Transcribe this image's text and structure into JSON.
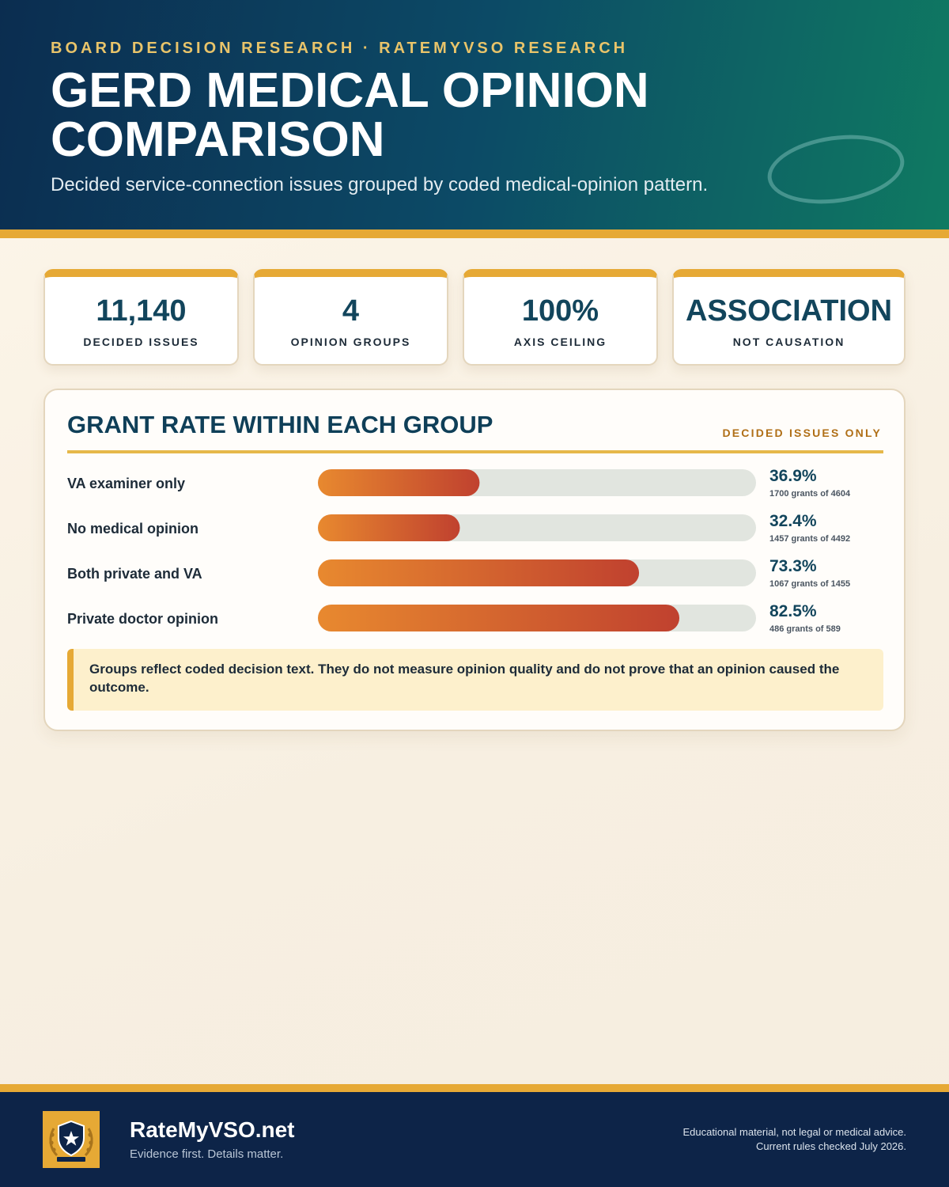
{
  "header": {
    "eyebrow": "BOARD DECISION RESEARCH · RATEMYVSO RESEARCH",
    "title": "GERD MEDICAL OPINION COMPARISON",
    "subtitle": "Decided service-connection issues grouped by coded medical-opinion pattern."
  },
  "stats": [
    {
      "value": "11,140",
      "label": "DECIDED ISSUES"
    },
    {
      "value": "4",
      "label": "OPINION GROUPS"
    },
    {
      "value": "100%",
      "label": "AXIS CEILING"
    },
    {
      "value": "ASSOCIATION",
      "label": "NOT CAUSATION"
    }
  ],
  "chart_panel": {
    "title": "GRANT RATE WITHIN EACH GROUP",
    "tag": "DECIDED ISSUES ONLY",
    "note": "Groups reflect coded decision text. They do not measure opinion quality and do not prove that an opinion caused the outcome."
  },
  "chart_data": {
    "type": "bar",
    "orientation": "horizontal",
    "title": "GRANT RATE WITHIN EACH GROUP",
    "xlim": [
      0,
      100
    ],
    "categories": [
      "VA examiner only",
      "No medical opinion",
      "Both private and VA",
      "Private doctor opinion"
    ],
    "values": [
      36.9,
      32.4,
      73.3,
      82.5
    ],
    "value_labels": [
      "36.9%",
      "32.4%",
      "73.3%",
      "82.5%"
    ],
    "detail_labels": [
      "1700 grants of 4604",
      "1457 grants of 4492",
      "1067 grants of 1455",
      "486 grants of 589"
    ],
    "grants": [
      1700,
      1457,
      1067,
      486
    ],
    "totals": [
      4604,
      4492,
      1455,
      589
    ]
  },
  "colors": {
    "header_dark": "#0b2d50",
    "header_teal": "#0f7a62",
    "accent_gold": "#e6a935",
    "bar_start": "#e8892f",
    "bar_end": "#c0412f",
    "track": "#e1e5df",
    "value_text": "#12455c",
    "footer": "#0d2448"
  },
  "footer": {
    "brand": "RateMyVSO.net",
    "tagline": "Evidence first. Details matter.",
    "disclaimer_line1": "Educational material, not legal or medical advice.",
    "disclaimer_line2": "Current rules checked July 2026.",
    "logo_icon": "shield-star-laurel-icon"
  }
}
